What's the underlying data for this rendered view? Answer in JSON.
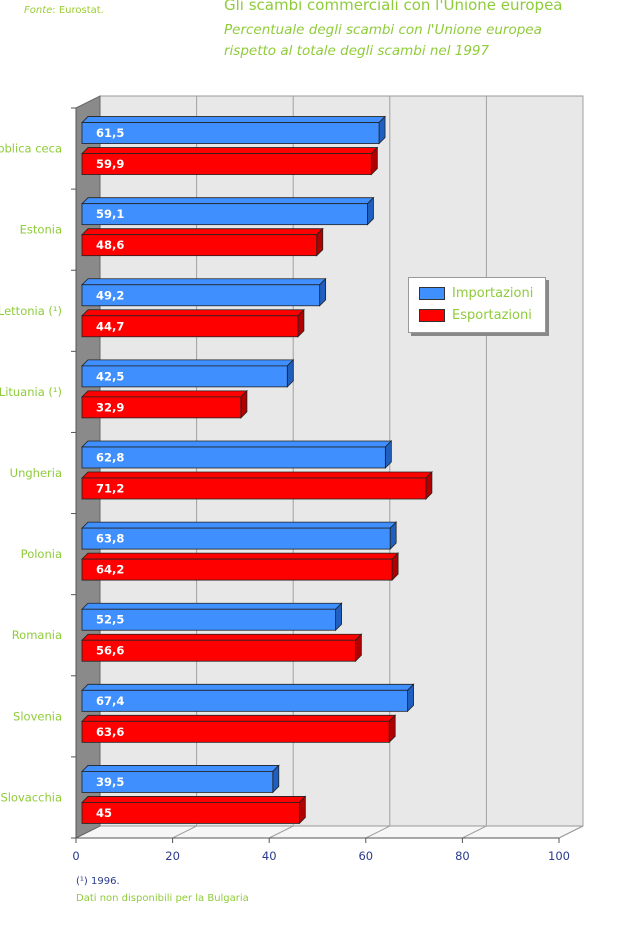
{
  "source": {
    "prefix": "Fonte",
    "text": ": Eurostat."
  },
  "title": "Gli scambi commerciali con l'Unione europea",
  "subtitle": "Percentuale degli scambi con l'Unione europea rispetto al totale degli scambi nel 1997",
  "footnotes": [
    "(¹) 1996.",
    "Dati non disponibili per la Bulgaria"
  ],
  "colors": {
    "imports": "#3f8fff",
    "exports": "#ff0000",
    "wall": "#e8e8e8",
    "side": "#8a8a8a"
  },
  "chart_data": {
    "type": "bar",
    "orientation": "horizontal",
    "categories": [
      "Repubblica ceca",
      "Estonia",
      "Lettonia (¹)",
      "Lituania (¹)",
      "Ungheria",
      "Polonia",
      "Romania",
      "Slovenia",
      "Slovacchia"
    ],
    "category_labels": [
      "ubblica ceca",
      "Estonia",
      "Lettonia (¹)",
      "Lituania (¹)",
      "Ungheria",
      "Polonia",
      "Romania",
      "Slovenia",
      "Slovacchia"
    ],
    "series": [
      {
        "name": "Importazioni",
        "values": [
          61.5,
          59.1,
          49.2,
          42.5,
          62.8,
          63.8,
          52.5,
          67.4,
          39.5
        ],
        "labels": [
          "61,5",
          "59,1",
          "49,2",
          "42,5",
          "62,8",
          "63,8",
          "52,5",
          "67,4",
          "39,5"
        ]
      },
      {
        "name": "Esportazioni",
        "values": [
          59.9,
          48.6,
          44.7,
          32.9,
          71.2,
          64.2,
          56.6,
          63.6,
          45
        ],
        "labels": [
          "59,9",
          "48,6",
          "44,7",
          "32,9",
          "71,2",
          "64,2",
          "56,6",
          "63,6",
          "45"
        ]
      }
    ],
    "xlim": [
      0,
      100
    ],
    "xticks": [
      0,
      20,
      40,
      60,
      80,
      100
    ],
    "xtick_labels": [
      "0",
      "20",
      "40",
      "60",
      "80",
      "100"
    ],
    "grid": true,
    "legend_position": "right"
  }
}
